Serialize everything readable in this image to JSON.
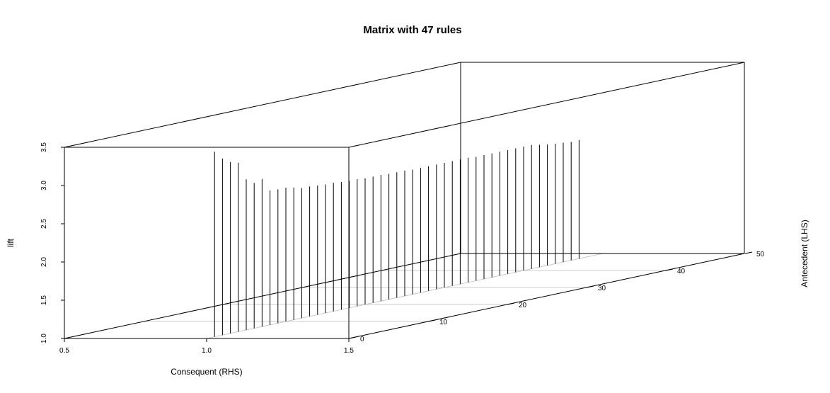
{
  "chart_data": {
    "type": "scatter3d",
    "title": "Matrix with 47 rules",
    "xlabel": "Consequent (RHS)",
    "ylabel": "Antecedent (LHS)",
    "zlabel": "lift",
    "x_ticks": [
      "0.5",
      "1.0",
      "1.5"
    ],
    "y_ticks": [
      "0",
      "10",
      "20",
      "30",
      "40",
      "50"
    ],
    "z_ticks": [
      "1.0",
      "1.5",
      "2.0",
      "2.5",
      "3.0",
      "3.5"
    ],
    "xlim": [
      0.5,
      1.5
    ],
    "ylim": [
      0,
      50
    ],
    "zlim": [
      1.0,
      3.5
    ],
    "type_detail": "histogram-style vertical stems (type h) in a 3D scatter box",
    "series": [
      {
        "x": 1.0,
        "antecedent": [
          1,
          2,
          3,
          4,
          5,
          6,
          7,
          8,
          9,
          10,
          11,
          12,
          13,
          14,
          15,
          16,
          17,
          18,
          19,
          20,
          21,
          22,
          23,
          24,
          25,
          26,
          27,
          28,
          29,
          30,
          31,
          32,
          33,
          34,
          35,
          36,
          37,
          38,
          39,
          40,
          41,
          42,
          43,
          44,
          45,
          46,
          47
        ],
        "lift": [
          3.42,
          3.31,
          3.24,
          3.21,
          2.97,
          2.9,
          2.93,
          2.76,
          2.75,
          2.75,
          2.73,
          2.7,
          2.7,
          2.69,
          2.68,
          2.68,
          2.67,
          2.66,
          2.66,
          2.65,
          2.65,
          2.65,
          2.64,
          2.64,
          2.64,
          2.63,
          2.63,
          2.63,
          2.63,
          2.63,
          2.63,
          2.63,
          2.63,
          2.62,
          2.62,
          2.62,
          2.62,
          2.62,
          2.62,
          2.62,
          2.62,
          2.6,
          2.58,
          2.57,
          2.56,
          2.55,
          2.55
        ]
      }
    ]
  }
}
